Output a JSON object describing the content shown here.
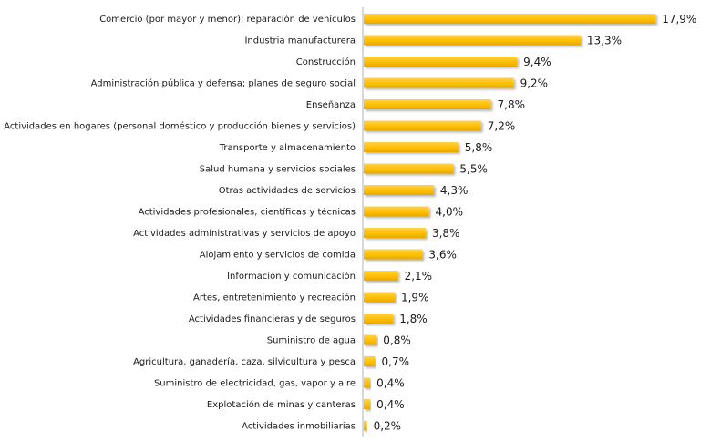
{
  "chart_data": {
    "type": "bar",
    "orientation": "horizontal",
    "title": "",
    "xlabel": "",
    "ylabel": "",
    "xlim": [
      0,
      18
    ],
    "grid": false,
    "legend": "none",
    "bar_color": "#FFC000",
    "categories": [
      "Comercio (por mayor y menor); reparación de vehículos",
      "Industria manufacturera",
      "Construcción",
      "Administración pública y defensa; planes de seguro social",
      "Enseñanza",
      "Actividades en hogares (personal doméstico y producción bienes y servicios)",
      "Transporte y almacenamiento",
      "Salud humana y servicios sociales",
      "Otras actividades de servicios",
      "Actividades profesionales, científicas y técnicas",
      "Actividades administrativas y servicios de apoyo",
      "Alojamiento y servicios de comida",
      "Información y comunicación",
      "Artes, entretenimiento y recreación",
      "Actividades financieras y de seguros",
      "Suministro de agua",
      "Agricultura, ganadería, caza, silvicultura y pesca",
      "Suministro de electricidad, gas, vapor y aire",
      "Explotación de minas y canteras",
      "Actividades inmobiliarias"
    ],
    "values": [
      17.9,
      13.3,
      9.4,
      9.2,
      7.8,
      7.2,
      5.8,
      5.5,
      4.3,
      4.0,
      3.8,
      3.6,
      2.1,
      1.9,
      1.8,
      0.8,
      0.7,
      0.4,
      0.4,
      0.2
    ],
    "value_labels": [
      "17,9%",
      "13,3%",
      "9,4%",
      "9,2%",
      "7,8%",
      "7,2%",
      "5,8%",
      "5,5%",
      "4,3%",
      "4,0%",
      "3,8%",
      "3,6%",
      "2,1%",
      "1,9%",
      "1,8%",
      "0,8%",
      "0,7%",
      "0,4%",
      "0,4%",
      "0,2%"
    ]
  }
}
